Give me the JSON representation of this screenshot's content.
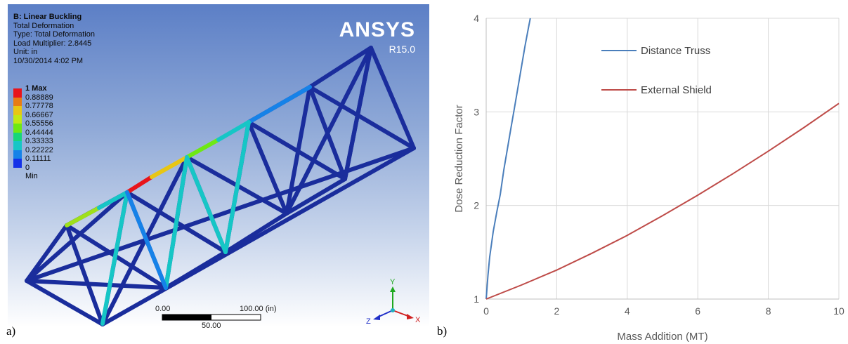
{
  "panel_a": {
    "label": "a)",
    "info": {
      "title": "B: Linear Buckling",
      "lines": [
        "Total Deformation",
        "Type: Total Deformation",
        "Load Multiplier: 2.8445",
        "Unit: in",
        "10/30/2014 4:02 PM"
      ]
    },
    "legend": {
      "labels": [
        "1 Max",
        "0.88889",
        "0.77778",
        "0.66667",
        "0.55556",
        "0.44444",
        "0.33333",
        "0.22222",
        "0.11111",
        "0 Min"
      ],
      "colors": [
        "#e8141b",
        "#e87c14",
        "#e8c614",
        "#c2e814",
        "#6ee814",
        "#16d67a",
        "#16c6c6",
        "#1682e8",
        "#1431e8"
      ]
    },
    "logo": {
      "brand": "ANSYS",
      "version": "R15.0"
    },
    "scale_bar": {
      "left": "0.00",
      "right": "100.00 (in)",
      "mid": "50.00"
    },
    "triad": {
      "x": "X",
      "y": "Y",
      "z": "Z"
    }
  },
  "panel_b": {
    "label": "b)",
    "chart_data": {
      "type": "line",
      "xlabel": "Mass Addition (MT)",
      "ylabel": "Dose Reduction Factor",
      "xlim": [
        0,
        10
      ],
      "ylim": [
        1,
        4
      ],
      "xticks": [
        "0",
        "2",
        "4",
        "6",
        "8",
        "10"
      ],
      "yticks": [
        "1",
        "2",
        "3",
        "4"
      ],
      "grid": true,
      "legend_position": "top-right",
      "series": [
        {
          "name": "Distance Truss",
          "color": "#4a7ebb",
          "x": [
            0,
            0.05,
            0.1,
            0.2,
            0.3,
            0.4,
            0.5,
            0.6,
            0.7,
            0.8,
            0.9,
            1.0,
            1.1,
            1.2,
            1.25
          ],
          "y": [
            1.0,
            1.25,
            1.45,
            1.72,
            1.93,
            2.12,
            2.38,
            2.6,
            2.82,
            3.04,
            3.26,
            3.48,
            3.7,
            3.9,
            4.0
          ]
        },
        {
          "name": "External Shield",
          "color": "#be4b48",
          "x": [
            0,
            1,
            2,
            3,
            4,
            5,
            6,
            7,
            8,
            9,
            10
          ],
          "y": [
            1.0,
            1.15,
            1.31,
            1.49,
            1.68,
            1.89,
            2.11,
            2.34,
            2.58,
            2.83,
            3.09
          ]
        }
      ]
    }
  }
}
